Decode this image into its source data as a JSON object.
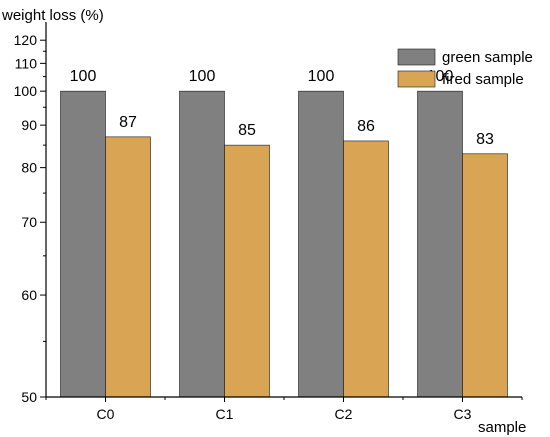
{
  "chart_data": {
    "type": "bar",
    "title": "",
    "xlabel": "sample",
    "ylabel": "weight loss (%)",
    "ylim": [
      50,
      125
    ],
    "yscale": "reciprocal",
    "yticks": [
      50,
      60,
      70,
      80,
      90,
      100,
      110,
      120
    ],
    "categories": [
      "C0",
      "C1",
      "C2",
      "C3"
    ],
    "series": [
      {
        "name": "green sample",
        "color": "#808080",
        "values": [
          100,
          100,
          100,
          100
        ]
      },
      {
        "name": "fired sample",
        "color": "#D9A453",
        "values": [
          87,
          85,
          86,
          83
        ]
      }
    ],
    "data_labels": true,
    "grid": false,
    "legend": "top-right"
  }
}
